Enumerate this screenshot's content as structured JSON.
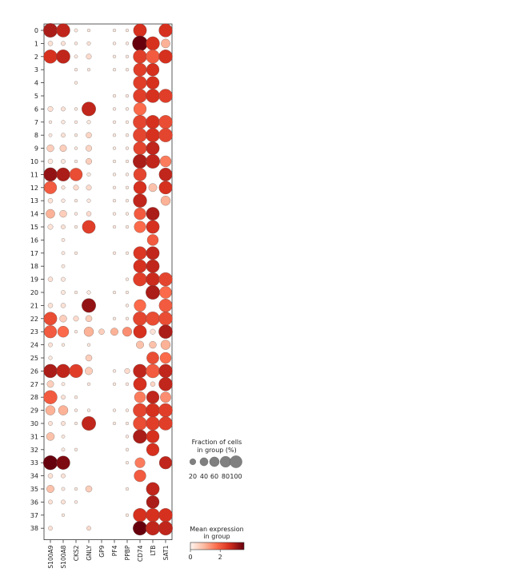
{
  "chart_data": {
    "type": "dotplot",
    "title": "",
    "xlabel": "",
    "ylabel": "",
    "genes": [
      "S100A9",
      "S100A8",
      "CKS2",
      "GNLY",
      "GP9",
      "PF4",
      "PPBP",
      "CD74",
      "LTB",
      "SAT1"
    ],
    "groups": [
      "0",
      "1",
      "2",
      "3",
      "4",
      "5",
      "6",
      "7",
      "8",
      "9",
      "10",
      "11",
      "12",
      "13",
      "14",
      "15",
      "16",
      "17",
      "18",
      "19",
      "20",
      "21",
      "22",
      "23",
      "24",
      "25",
      "26",
      "27",
      "28",
      "29",
      "30",
      "31",
      "32",
      "33",
      "34",
      "35",
      "36",
      "37",
      "38"
    ],
    "fraction": [
      [
        85,
        80,
        5,
        4,
        0,
        4,
        4,
        75,
        0,
        78
      ],
      [
        10,
        8,
        4,
        6,
        0,
        4,
        4,
        100,
        80,
        35
      ],
      [
        80,
        82,
        5,
        12,
        0,
        4,
        4,
        80,
        80,
        80
      ],
      [
        0,
        0,
        4,
        4,
        0,
        4,
        4,
        75,
        70,
        0
      ],
      [
        0,
        0,
        4,
        0,
        0,
        0,
        0,
        78,
        72,
        0
      ],
      [
        0,
        0,
        0,
        0,
        0,
        4,
        4,
        80,
        80,
        80
      ],
      [
        12,
        8,
        4,
        85,
        0,
        4,
        4,
        70,
        0,
        0
      ],
      [
        4,
        6,
        4,
        6,
        0,
        4,
        4,
        82,
        80,
        80
      ],
      [
        5,
        8,
        4,
        14,
        0,
        4,
        4,
        82,
        82,
        82
      ],
      [
        22,
        20,
        4,
        16,
        0,
        4,
        4,
        75,
        75,
        0
      ],
      [
        10,
        8,
        4,
        16,
        0,
        4,
        4,
        85,
        85,
        55
      ],
      [
        80,
        78,
        72,
        6,
        0,
        4,
        4,
        72,
        0,
        75
      ],
      [
        70,
        6,
        12,
        12,
        0,
        4,
        4,
        72,
        30,
        75
      ],
      [
        10,
        6,
        4,
        6,
        0,
        4,
        4,
        80,
        0,
        40
      ],
      [
        35,
        22,
        4,
        10,
        0,
        4,
        4,
        62,
        75,
        0
      ],
      [
        12,
        8,
        4,
        75,
        0,
        4,
        4,
        60,
        75,
        0
      ],
      [
        0,
        5,
        0,
        0,
        0,
        0,
        0,
        0,
        55,
        0
      ],
      [
        0,
        5,
        4,
        0,
        0,
        4,
        4,
        75,
        75,
        0
      ],
      [
        0,
        5,
        0,
        0,
        0,
        0,
        0,
        75,
        75,
        0
      ],
      [
        10,
        8,
        0,
        0,
        0,
        0,
        4,
        80,
        80,
        80
      ],
      [
        0,
        8,
        4,
        6,
        0,
        4,
        4,
        0,
        85,
        65
      ],
      [
        10,
        10,
        0,
        85,
        0,
        0,
        4,
        62,
        0,
        75
      ],
      [
        75,
        22,
        12,
        18,
        0,
        4,
        4,
        82,
        82,
        80
      ],
      [
        70,
        55,
        4,
        40,
        14,
        25,
        38,
        75,
        12,
        82
      ],
      [
        8,
        4,
        0,
        4,
        0,
        0,
        0,
        25,
        22,
        40
      ],
      [
        6,
        0,
        0,
        18,
        0,
        0,
        0,
        0,
        65,
        55
      ],
      [
        80,
        80,
        78,
        25,
        0,
        4,
        12,
        80,
        82,
        80
      ],
      [
        20,
        5,
        0,
        4,
        0,
        4,
        4,
        75,
        10,
        80
      ],
      [
        80,
        8,
        4,
        0,
        0,
        0,
        0,
        55,
        70,
        50
      ],
      [
        40,
        40,
        4,
        4,
        0,
        4,
        4,
        82,
        82,
        82
      ],
      [
        8,
        8,
        4,
        85,
        0,
        4,
        4,
        80,
        80,
        80
      ],
      [
        28,
        5,
        0,
        0,
        0,
        0,
        4,
        82,
        72,
        0
      ],
      [
        0,
        5,
        4,
        0,
        0,
        0,
        4,
        0,
        70,
        0
      ],
      [
        88,
        80,
        0,
        0,
        0,
        0,
        4,
        45,
        0,
        70
      ],
      [
        10,
        8,
        0,
        0,
        0,
        0,
        0,
        62,
        0,
        0
      ],
      [
        25,
        5,
        4,
        18,
        0,
        0,
        4,
        0,
        75,
        0
      ],
      [
        8,
        8,
        4,
        0,
        0,
        0,
        0,
        0,
        72,
        0
      ],
      [
        0,
        4,
        0,
        0,
        0,
        0,
        4,
        80,
        80,
        80
      ],
      [
        8,
        0,
        0,
        8,
        0,
        0,
        0,
        85,
        85,
        85
      ]
    ],
    "expression": [
      [
        3.0,
        2.8,
        0.2,
        0.2,
        0,
        0.2,
        0.2,
        2.6,
        0,
        2.6
      ],
      [
        0.3,
        0.3,
        0.2,
        0.3,
        0,
        0.2,
        0.2,
        3.6,
        2.6,
        1.0
      ],
      [
        2.6,
        2.8,
        0.2,
        0.4,
        0,
        0.2,
        0.2,
        2.4,
        2.0,
        2.6
      ],
      [
        0,
        0,
        0.2,
        0.2,
        0,
        0.2,
        0.2,
        2.4,
        2.6,
        0
      ],
      [
        0,
        0,
        0.2,
        0,
        0,
        0,
        0,
        2.4,
        2.6,
        0
      ],
      [
        0,
        0,
        0,
        0,
        0,
        0.2,
        0.2,
        2.4,
        2.6,
        2.4
      ],
      [
        0.3,
        0.3,
        0.2,
        2.8,
        0,
        0.2,
        0.2,
        1.8,
        0,
        0
      ],
      [
        0.2,
        0.2,
        0.2,
        0.2,
        0,
        0.2,
        0.2,
        2.3,
        2.6,
        2.2
      ],
      [
        0.2,
        0.3,
        0.2,
        0.5,
        0,
        0.2,
        0.2,
        2.3,
        2.6,
        2.3
      ],
      [
        0.6,
        0.6,
        0.2,
        0.5,
        0,
        0.2,
        0.2,
        2.3,
        2.8,
        0
      ],
      [
        0.2,
        0.2,
        0.2,
        0.6,
        0,
        0.2,
        0.2,
        3.0,
        2.8,
        1.6
      ],
      [
        3.2,
        3.0,
        2.2,
        0.2,
        0,
        0.2,
        0.2,
        2.3,
        0,
        2.8
      ],
      [
        2.0,
        0.3,
        0.4,
        0.4,
        0,
        0.2,
        0.2,
        2.6,
        0.8,
        2.6
      ],
      [
        0.3,
        0.2,
        0.2,
        0.2,
        0,
        0.2,
        0.2,
        2.8,
        0,
        1.0
      ],
      [
        1.0,
        0.6,
        0.2,
        0.4,
        0,
        0.2,
        0.2,
        2.0,
        3.0,
        0
      ],
      [
        0.3,
        0.3,
        0.2,
        2.4,
        0,
        0.2,
        0.2,
        1.8,
        2.6,
        0
      ],
      [
        0,
        0.2,
        0,
        0,
        0,
        0,
        0,
        0,
        2.0,
        0
      ],
      [
        0,
        0.2,
        0.2,
        0,
        0,
        0.2,
        0.2,
        2.5,
        2.8,
        0
      ],
      [
        0,
        0.2,
        0,
        0,
        0,
        0,
        0,
        2.6,
        2.8,
        0
      ],
      [
        0.3,
        0.2,
        0,
        0,
        0,
        0,
        0.2,
        2.4,
        2.7,
        2.3
      ],
      [
        0,
        0.2,
        0.2,
        0.2,
        0,
        0.2,
        0.2,
        0,
        3.0,
        1.8
      ],
      [
        0.3,
        0.3,
        0,
        3.2,
        0,
        0,
        0.2,
        1.8,
        0,
        2.0
      ],
      [
        2.2,
        0.6,
        0.4,
        0.6,
        0,
        0.2,
        0.2,
        2.3,
        2.2,
        2.2
      ],
      [
        2.0,
        1.8,
        0.2,
        1.0,
        0.6,
        1.0,
        1.4,
        2.6,
        0.3,
        3.0
      ],
      [
        0.3,
        0.2,
        0,
        0.2,
        0,
        0,
        0,
        0.8,
        0.8,
        1.0
      ],
      [
        0.2,
        0,
        0,
        0.6,
        0,
        0,
        0,
        0,
        2.2,
        1.8
      ],
      [
        3.0,
        2.8,
        2.4,
        0.6,
        0,
        0.2,
        0.4,
        2.8,
        2.0,
        2.8
      ],
      [
        0.6,
        0.2,
        0,
        0.2,
        0,
        0.2,
        0.2,
        2.6,
        0.5,
        2.8
      ],
      [
        2.0,
        0.3,
        0.2,
        0,
        0,
        0,
        0,
        1.6,
        2.8,
        1.4
      ],
      [
        1.0,
        1.0,
        0.2,
        0.2,
        0,
        0.2,
        0.2,
        2.3,
        2.6,
        2.4
      ],
      [
        0.3,
        0.3,
        0.2,
        2.8,
        0,
        0.2,
        0.2,
        2.2,
        2.4,
        2.4
      ],
      [
        0.8,
        0.2,
        0,
        0,
        0,
        0,
        0.2,
        3.0,
        2.6,
        0
      ],
      [
        0,
        0.2,
        0.2,
        0,
        0,
        0,
        0.2,
        0,
        2.6,
        0
      ],
      [
        3.6,
        3.4,
        0,
        0,
        0,
        0,
        0.2,
        1.6,
        0,
        2.8
      ],
      [
        0.3,
        0.3,
        0,
        0,
        0,
        0,
        0,
        2.0,
        0,
        0
      ],
      [
        0.8,
        0.2,
        0.2,
        0.6,
        0,
        0,
        0.2,
        0,
        2.8,
        0
      ],
      [
        0.3,
        0.3,
        0.2,
        0,
        0,
        0,
        0,
        0,
        3.0,
        0
      ],
      [
        0,
        0.2,
        0,
        0,
        0,
        0,
        0.2,
        2.6,
        2.6,
        2.6
      ],
      [
        0.3,
        0,
        0,
        0.4,
        0,
        0,
        0,
        3.6,
        2.8,
        2.8
      ]
    ],
    "legend_size": {
      "title": "Fraction of cells\nin group (%)",
      "values": [
        20,
        40,
        60,
        80,
        100
      ],
      "tick_labels": [
        "20",
        "40",
        "60",
        "80",
        "100"
      ]
    },
    "legend_color": {
      "title": "Mean expression\nin group",
      "range": [
        0,
        3.6
      ],
      "tick_labels": [
        "0",
        "2"
      ]
    },
    "colors": {
      "low": "#fff5f0",
      "mid": "#ef3b2c",
      "high": "#67000d",
      "legend_dot": "#808080"
    }
  }
}
